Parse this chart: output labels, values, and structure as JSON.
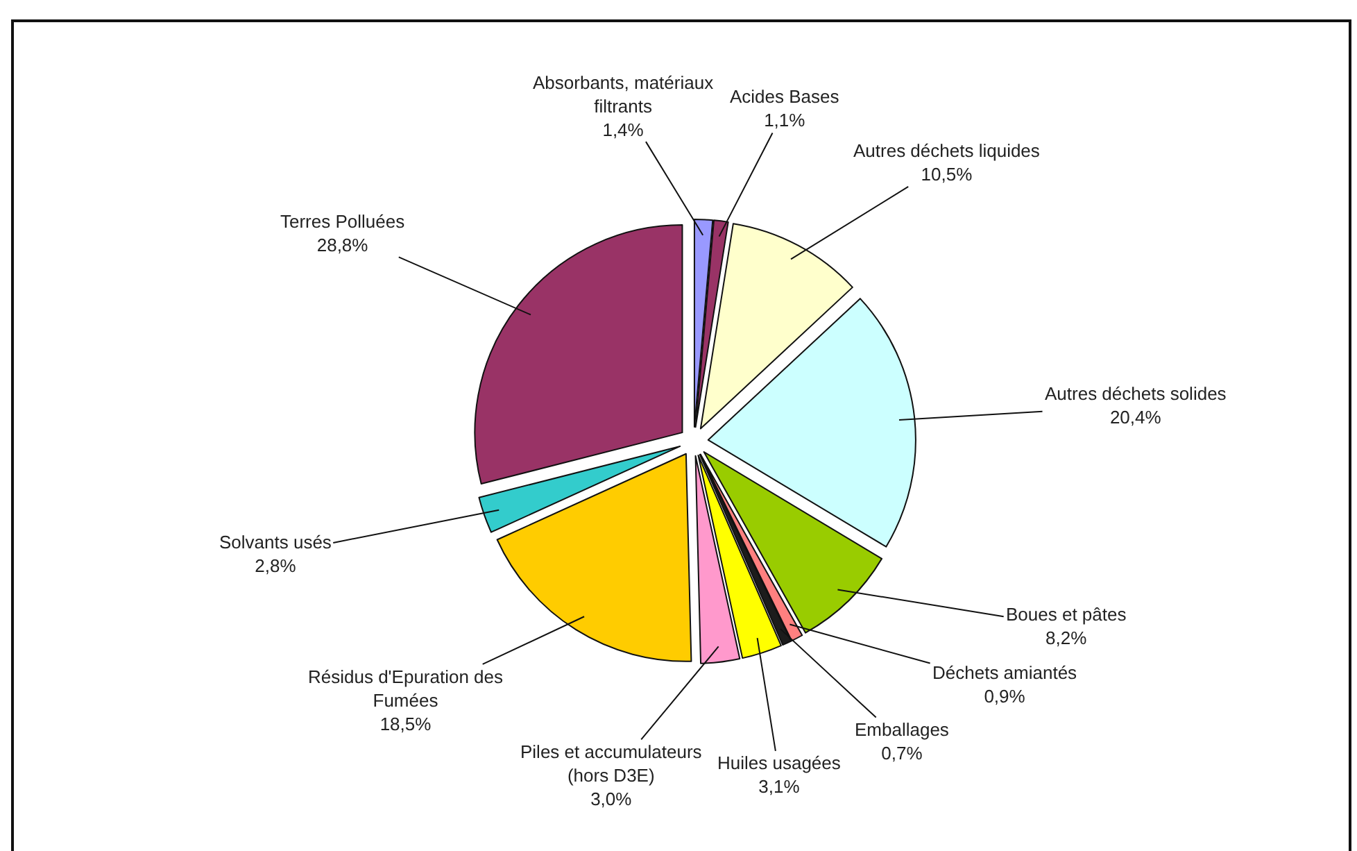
{
  "chart_data": {
    "type": "pie",
    "categories": [
      "Absorbants, matériaux filtrants",
      "Acides Bases",
      "Autres déchets liquides",
      "Autres déchets solides",
      "Boues et pâtes",
      "Déchets amiantés",
      "Emballages",
      "Huiles usagées",
      "Piles et accumulateurs (hors D3E)",
      "Résidus d'Epuration des Fumées",
      "Solvants usés",
      "Terres Polluées"
    ],
    "values": [
      1.4,
      1.1,
      10.5,
      20.4,
      8.2,
      0.9,
      0.7,
      3.1,
      3.0,
      18.5,
      2.8,
      28.8
    ],
    "value_labels": [
      "1,4%",
      "1,1%",
      "10,5%",
      "20,4%",
      "8,2%",
      "0,9%",
      "0,7%",
      "3,1%",
      "3,0%",
      "18,5%",
      "2,8%",
      "28,8%"
    ],
    "colors": [
      "#9999ff",
      "#993366",
      "#ffffcc",
      "#ccffff",
      "#99cc00",
      "#ff8080",
      "#1c1c1c",
      "#ffff00",
      "#ff99cc",
      "#ffcc00",
      "#33cccc",
      "#993366"
    ]
  }
}
